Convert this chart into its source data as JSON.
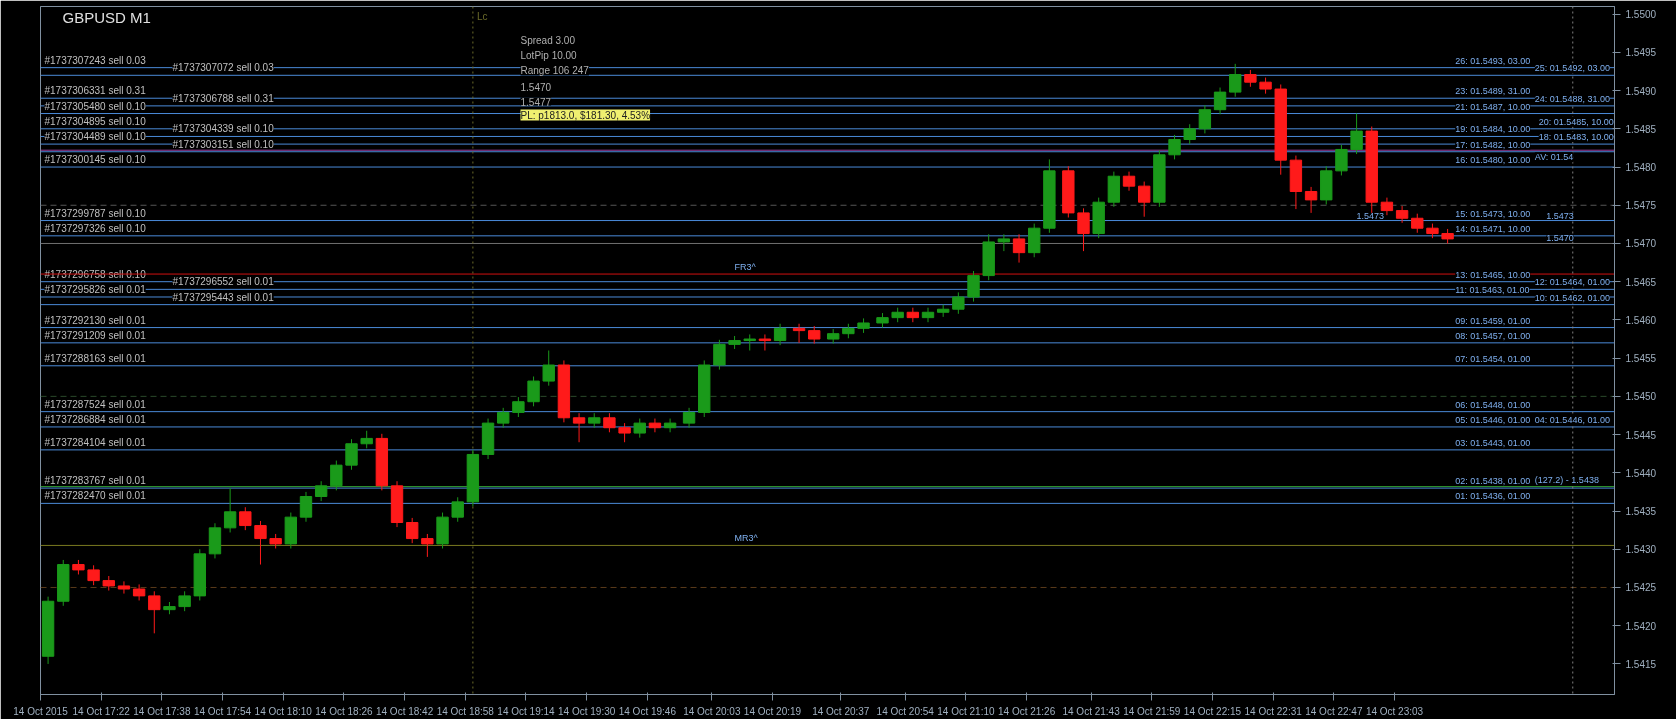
{
  "chart_data": {
    "type": "candlestick",
    "title": "GBPUSD  M1",
    "x": [
      "2015-10-14T17:08",
      "2015-10-14T17:12",
      "2015-10-14T17:16",
      "2015-10-14T17:20",
      "2015-10-14T17:24",
      "2015-10-14T17:28",
      "2015-10-14T17:32",
      "2015-10-14T17:36",
      "2015-10-14T17:40",
      "2015-10-14T17:44",
      "2015-10-14T17:48",
      "2015-10-14T17:52",
      "2015-10-14T17:56",
      "2015-10-14T18:00",
      "2015-10-14T18:04",
      "2015-10-14T18:08",
      "2015-10-14T18:12",
      "2015-10-14T18:16",
      "2015-10-14T18:20",
      "2015-10-14T18:24",
      "2015-10-14T18:28",
      "2015-10-14T18:32",
      "2015-10-14T18:36",
      "2015-10-14T18:40",
      "2015-10-14T18:44",
      "2015-10-14T18:48",
      "2015-10-14T18:52",
      "2015-10-14T18:56",
      "2015-10-14T19:00",
      "2015-10-14T19:04",
      "2015-10-14T19:08",
      "2015-10-14T19:12",
      "2015-10-14T19:16",
      "2015-10-14T19:20",
      "2015-10-14T19:24",
      "2015-10-14T19:28",
      "2015-10-14T19:32",
      "2015-10-14T19:36",
      "2015-10-14T19:40",
      "2015-10-14T19:44",
      "2015-10-14T19:48",
      "2015-10-14T19:52",
      "2015-10-14T19:57",
      "2015-10-14T20:01",
      "2015-10-14T20:05",
      "2015-10-14T20:09",
      "2015-10-14T20:13",
      "2015-10-14T20:17",
      "2015-10-14T20:21",
      "2015-10-14T20:26",
      "2015-10-14T20:30",
      "2015-10-14T20:35",
      "2015-10-14T20:39",
      "2015-10-14T20:43",
      "2015-10-14T20:48",
      "2015-10-14T20:52",
      "2015-10-14T20:56",
      "2015-10-14T21:00",
      "2015-10-14T21:04",
      "2015-10-14T21:08",
      "2015-10-14T21:12",
      "2015-10-14T21:16",
      "2015-10-14T21:20",
      "2015-10-14T21:24",
      "2015-10-14T21:28",
      "2015-10-14T21:32",
      "2015-10-14T21:37",
      "2015-10-14T21:41",
      "2015-10-14T21:45",
      "2015-10-14T21:49",
      "2015-10-14T21:53",
      "2015-10-14T21:57",
      "2015-10-14T22:01",
      "2015-10-14T22:05",
      "2015-10-14T22:09",
      "2015-10-14T22:13",
      "2015-10-14T22:17",
      "2015-10-14T22:21",
      "2015-10-14T22:25",
      "2015-10-14T22:29",
      "2015-10-14T22:33",
      "2015-10-14T22:37",
      "2015-10-14T22:41",
      "2015-10-14T22:45",
      "2015-10-14T22:49",
      "2015-10-14T22:53",
      "2015-10-14T22:57",
      "2015-10-14T23:01",
      "2015-10-14T23:05",
      "2015-10-14T23:09",
      "2015-10-14T23:13",
      "2015-10-14T23:17"
    ],
    "ohlc": [
      [
        1.5416,
        1.54238,
        1.5415,
        1.54232
      ],
      [
        1.54232,
        1.54286,
        1.54226,
        1.5428
      ],
      [
        1.5428,
        1.54286,
        1.54267,
        1.54273
      ],
      [
        1.54273,
        1.54279,
        1.54253,
        1.54259
      ],
      [
        1.54259,
        1.54265,
        1.54246,
        1.54252
      ],
      [
        1.54252,
        1.54258,
        1.54242,
        1.54248
      ],
      [
        1.54248,
        1.54254,
        1.54233,
        1.54239
      ],
      [
        1.54239,
        1.54245,
        1.5419,
        1.54221
      ],
      [
        1.54221,
        1.54231,
        1.54215,
        1.54225
      ],
      [
        1.54225,
        1.54245,
        1.54219,
        1.54239
      ],
      [
        1.54239,
        1.543,
        1.54233,
        1.54294
      ],
      [
        1.54294,
        1.54334,
        1.54288,
        1.54328
      ],
      [
        1.54328,
        1.5438,
        1.54322,
        1.54349
      ],
      [
        1.54349,
        1.54355,
        1.54325,
        1.54331
      ],
      [
        1.54331,
        1.54337,
        1.5428,
        1.54314
      ],
      [
        1.54314,
        1.5432,
        1.54301,
        1.54307
      ],
      [
        1.54307,
        1.54348,
        1.54301,
        1.54342
      ],
      [
        1.54342,
        1.54375,
        1.54336,
        1.54369
      ],
      [
        1.54369,
        1.54389,
        1.54363,
        1.54383
      ],
      [
        1.54383,
        1.54416,
        1.54377,
        1.5441
      ],
      [
        1.5441,
        1.54444,
        1.54404,
        1.54438
      ],
      [
        1.54438,
        1.54455,
        1.54432,
        1.54445
      ],
      [
        1.54445,
        1.54451,
        1.54377,
        1.54383
      ],
      [
        1.54383,
        1.54389,
        1.54329,
        1.54335
      ],
      [
        1.54335,
        1.54341,
        1.54308,
        1.54314
      ],
      [
        1.54314,
        1.5432,
        1.5429,
        1.54307
      ],
      [
        1.54307,
        1.54348,
        1.54301,
        1.54342
      ],
      [
        1.54342,
        1.54368,
        1.54336,
        1.54362
      ],
      [
        1.54362,
        1.5443,
        1.54356,
        1.54424
      ],
      [
        1.54424,
        1.54471,
        1.54418,
        1.54465
      ],
      [
        1.54465,
        1.54485,
        1.54459,
        1.54479
      ],
      [
        1.54479,
        1.54499,
        1.54473,
        1.54493
      ],
      [
        1.54493,
        1.54526,
        1.54487,
        1.5452
      ],
      [
        1.5452,
        1.5456,
        1.54514,
        1.54541
      ],
      [
        1.54541,
        1.54547,
        1.54466,
        1.54472
      ],
      [
        1.54472,
        1.54478,
        1.5444,
        1.54465
      ],
      [
        1.54465,
        1.54478,
        1.54459,
        1.54472
      ],
      [
        1.54472,
        1.54478,
        1.54453,
        1.54459
      ],
      [
        1.54459,
        1.54465,
        1.5444,
        1.54452
      ],
      [
        1.54452,
        1.54471,
        1.54446,
        1.54465
      ],
      [
        1.54465,
        1.54471,
        1.54453,
        1.54459
      ],
      [
        1.54459,
        1.54471,
        1.54453,
        1.54465
      ],
      [
        1.54465,
        1.54485,
        1.54459,
        1.54479
      ],
      [
        1.54479,
        1.54547,
        1.54473,
        1.54541
      ],
      [
        1.54541,
        1.54574,
        1.54535,
        1.54568
      ],
      [
        1.54568,
        1.54579,
        1.54562,
        1.54573
      ],
      [
        1.54573,
        1.54581,
        1.5456,
        1.54575
      ],
      [
        1.54575,
        1.54581,
        1.5456,
        1.54573
      ],
      [
        1.54573,
        1.54595,
        1.54567,
        1.54589
      ],
      [
        1.54589,
        1.54595,
        1.5457,
        1.54586
      ],
      [
        1.54586,
        1.54592,
        1.54569,
        1.54575
      ],
      [
        1.54575,
        1.54588,
        1.54569,
        1.54582
      ],
      [
        1.54582,
        1.54595,
        1.54576,
        1.54589
      ],
      [
        1.54589,
        1.54602,
        1.54583,
        1.54596
      ],
      [
        1.54596,
        1.54609,
        1.5459,
        1.54603
      ],
      [
        1.54603,
        1.54616,
        1.54597,
        1.5461
      ],
      [
        1.5461,
        1.54616,
        1.54597,
        1.54603
      ],
      [
        1.54603,
        1.54616,
        1.54597,
        1.5461
      ],
      [
        1.5461,
        1.5462,
        1.54604,
        1.54614
      ],
      [
        1.54614,
        1.54636,
        1.54608,
        1.5463
      ],
      [
        1.5463,
        1.54664,
        1.54624,
        1.54658
      ],
      [
        1.54658,
        1.54712,
        1.54652,
        1.54702
      ],
      [
        1.54702,
        1.54712,
        1.5469,
        1.54706
      ],
      [
        1.54706,
        1.54712,
        1.54675,
        1.54688
      ],
      [
        1.54688,
        1.54726,
        1.54682,
        1.5472
      ],
      [
        1.5472,
        1.5481,
        1.54714,
        1.54795
      ],
      [
        1.54795,
        1.54801,
        1.54734,
        1.5474
      ],
      [
        1.5474,
        1.54746,
        1.5469,
        1.54713
      ],
      [
        1.54713,
        1.5476,
        1.54707,
        1.54754
      ],
      [
        1.54754,
        1.54794,
        1.54748,
        1.54788
      ],
      [
        1.54788,
        1.54794,
        1.54769,
        1.54775
      ],
      [
        1.54775,
        1.54781,
        1.54735,
        1.54754
      ],
      [
        1.54754,
        1.54822,
        1.54748,
        1.54816
      ],
      [
        1.54816,
        1.54842,
        1.5481,
        1.54836
      ],
      [
        1.54836,
        1.54856,
        1.5483,
        1.5485
      ],
      [
        1.5485,
        1.54881,
        1.54844,
        1.54875
      ],
      [
        1.54875,
        1.54904,
        1.54869,
        1.54898
      ],
      [
        1.54898,
        1.54935,
        1.54892,
        1.54921
      ],
      [
        1.54921,
        1.54927,
        1.54905,
        1.54911
      ],
      [
        1.54911,
        1.54917,
        1.54896,
        1.54902
      ],
      [
        1.54902,
        1.54908,
        1.5479,
        1.54809
      ],
      [
        1.54809,
        1.54815,
        1.54745,
        1.54768
      ],
      [
        1.54768,
        1.54774,
        1.5474,
        1.54757
      ],
      [
        1.54757,
        1.54801,
        1.54751,
        1.54795
      ],
      [
        1.54795,
        1.54829,
        1.54789,
        1.54823
      ],
      [
        1.54823,
        1.5487,
        1.54817,
        1.54847
      ],
      [
        1.54847,
        1.54853,
        1.5474,
        1.54754
      ],
      [
        1.54754,
        1.5476,
        1.54737,
        1.54743
      ],
      [
        1.54743,
        1.54749,
        1.54727,
        1.54733
      ],
      [
        1.54733,
        1.54739,
        1.54714,
        1.5472
      ],
      [
        1.5472,
        1.54726,
        1.54707,
        1.54713
      ],
      [
        1.54713,
        1.54719,
        1.547,
        1.54706
      ]
    ],
    "colors": [
      "#1a9a1a",
      "#1a9a1a",
      "#ff1a1a",
      "#ff1a1a",
      "#ff1a1a",
      "#ff1a1a",
      "#ff1a1a",
      "#ff1a1a",
      "#1a9a1a",
      "#1a9a1a",
      "#1a9a1a",
      "#1a9a1a",
      "#1a9a1a",
      "#ff1a1a",
      "#ff1a1a",
      "#ff1a1a",
      "#1a9a1a",
      "#1a9a1a",
      "#1a9a1a",
      "#1a9a1a",
      "#1a9a1a",
      "#1a9a1a",
      "#ff1a1a",
      "#ff1a1a",
      "#ff1a1a",
      "#ff1a1a",
      "#1a9a1a",
      "#1a9a1a",
      "#1a9a1a",
      "#1a9a1a",
      "#1a9a1a",
      "#1a9a1a",
      "#1a9a1a",
      "#1a9a1a",
      "#ff1a1a",
      "#ff1a1a",
      "#1a9a1a",
      "#ff1a1a",
      "#ff1a1a",
      "#1a9a1a",
      "#ff1a1a",
      "#1a9a1a",
      "#1a9a1a",
      "#1a9a1a",
      "#1a9a1a",
      "#1a9a1a",
      "#1a9a1a",
      "#ff1a1a",
      "#1a9a1a",
      "#ff1a1a",
      "#ff1a1a",
      "#1a9a1a",
      "#1a9a1a",
      "#1a9a1a",
      "#1a9a1a",
      "#1a9a1a",
      "#ff1a1a",
      "#1a9a1a",
      "#1a9a1a",
      "#1a9a1a",
      "#1a9a1a",
      "#1a9a1a",
      "#1a9a1a",
      "#ff1a1a",
      "#1a9a1a",
      "#1a9a1a",
      "#ff1a1a",
      "#ff1a1a",
      "#1a9a1a",
      "#1a9a1a",
      "#ff1a1a",
      "#ff1a1a",
      "#1a9a1a",
      "#1a9a1a",
      "#1a9a1a",
      "#1a9a1a",
      "#1a9a1a",
      "#1a9a1a",
      "#ff1a1a",
      "#ff1a1a",
      "#ff1a1a",
      "#ff1a1a",
      "#ff1a1a",
      "#1a9a1a",
      "#1a9a1a",
      "#1a9a1a",
      "#ff1a1a",
      "#ff1a1a",
      "#ff1a1a",
      "#ff1a1a",
      "#ff1a1a",
      "#ff1a1a"
    ],
    "xlim": [
      "2015-10-14T17:06",
      "2015-10-15T00:01"
    ],
    "xticks": [
      {
        "value": "2015-10-14T17:06",
        "label": "14 Oct 2015"
      },
      {
        "value": "2015-10-14T17:22",
        "label": "14 Oct 17:22"
      },
      {
        "value": "2015-10-14T17:38",
        "label": "14 Oct 17:38"
      },
      {
        "value": "2015-10-14T17:54",
        "label": "14 Oct 17:54"
      },
      {
        "value": "2015-10-14T18:10",
        "label": "14 Oct 18:10"
      },
      {
        "value": "2015-10-14T18:26",
        "label": "14 Oct 18:26"
      },
      {
        "value": "2015-10-14T18:42",
        "label": "14 Oct 18:42"
      },
      {
        "value": "2015-10-14T18:58",
        "label": "14 Oct 18:58"
      },
      {
        "value": "2015-10-14T19:14",
        "label": "14 Oct 19:14"
      },
      {
        "value": "2015-10-14T19:30",
        "label": "14 Oct 19:30"
      },
      {
        "value": "2015-10-14T19:46",
        "label": "14 Oct 19:46"
      },
      {
        "value": "2015-10-14T20:03",
        "label": "14 Oct 20:03"
      },
      {
        "value": "2015-10-14T20:19",
        "label": "14 Oct 20:19"
      },
      {
        "value": "2015-10-14T20:37",
        "label": "14 Oct 20:37"
      },
      {
        "value": "2015-10-14T20:54",
        "label": "14 Oct 20:54"
      },
      {
        "value": "2015-10-14T21:10",
        "label": "14 Oct 21:10"
      },
      {
        "value": "2015-10-14T21:26",
        "label": "14 Oct 21:26"
      },
      {
        "value": "2015-10-14T21:43",
        "label": "14 Oct 21:43"
      },
      {
        "value": "2015-10-14T21:59",
        "label": "14 Oct 21:59"
      },
      {
        "value": "2015-10-14T22:15",
        "label": "14 Oct 22:15"
      },
      {
        "value": "2015-10-14T22:31",
        "label": "14 Oct 22:31"
      },
      {
        "value": "2015-10-14T22:47",
        "label": "14 Oct 22:47"
      },
      {
        "value": "2015-10-14T23:03",
        "label": "14 Oct 23:03"
      }
    ],
    "ylim": [
      1.5411,
      1.5501
    ],
    "yticks": [
      1.5415,
      {
        "value": 1.542,
        "label": "1.5420"
      },
      1.5425,
      {
        "value": 1.543,
        "label": "1.5430"
      },
      1.5435,
      {
        "value": 1.544,
        "label": "1.5440"
      },
      1.5445,
      {
        "value": 1.545,
        "label": "1.5450"
      },
      1.5455,
      {
        "value": 1.546,
        "label": "1.5460"
      },
      1.5465,
      {
        "value": 1.547,
        "label": "1.5470"
      },
      1.5475,
      {
        "value": 1.548,
        "label": "1.5480"
      },
      1.5485,
      {
        "value": 1.549,
        "label": "1.5490"
      },
      1.5495,
      {
        "value": 1.55,
        "label": "1.5500"
      }
    ],
    "ref_lines": [
      {
        "axis": "y",
        "value": 1.5493,
        "label": "#1737307243 sell 0.03",
        "color": "#4a8ad8",
        "line_style": "solid"
      },
      {
        "axis": "y",
        "value": 1.5492,
        "label": "#1737307072 sell 0.03",
        "color": "#4a8ad8",
        "line_style": "solid"
      },
      {
        "axis": "y",
        "value": 1.5489,
        "label": "#1737306331 sell 0.31",
        "color": "#4a8ad8",
        "line_style": "solid"
      },
      {
        "axis": "y",
        "value": 1.5488,
        "label": "#1737306788 sell 0.31",
        "color": "#4a8ad8",
        "line_style": "solid"
      },
      {
        "axis": "y",
        "value": 1.5487,
        "label": "#1737305480 sell 0.10",
        "color": "#4a8ad8",
        "line_style": "solid"
      },
      {
        "axis": "y",
        "value": 1.5485,
        "label": "#1737304895 sell 0.10",
        "color": "#4a8ad8",
        "line_style": "solid"
      },
      {
        "axis": "y",
        "value": 1.5484,
        "label": "#1737304339 sell 0.10",
        "color": "#4a8ad8",
        "line_style": "solid"
      },
      {
        "axis": "y",
        "value": 1.5483,
        "label": "#1737304489 sell 0.10",
        "color": "#4a8ad8",
        "line_style": "solid"
      },
      {
        "axis": "y",
        "value": 1.5482,
        "label": "#1737303151 sell 0.10",
        "color": "#4a8ad8",
        "line_style": "solid"
      },
      {
        "axis": "y",
        "value": 1.548,
        "label": "#1737300145 sell 0.10",
        "color": "#4a8ad8",
        "line_style": "solid"
      },
      {
        "axis": "y",
        "value": 1.5473,
        "label": "#1737299787 sell 0.10",
        "color": "#4a8ad8",
        "line_style": "solid"
      },
      {
        "axis": "y",
        "value": 1.5471,
        "label": "#1737297326 sell 0.10",
        "color": "#4a8ad8",
        "line_style": "solid"
      },
      {
        "axis": "y",
        "value": 1.5465,
        "label": "#1737296758 sell 0.10",
        "color": "#4a8ad8",
        "line_style": "solid"
      },
      {
        "axis": "y",
        "value": 1.5464,
        "label": "#1737296552 sell 0.01",
        "color": "#4a8ad8",
        "line_style": "solid"
      },
      {
        "axis": "y",
        "value": 1.5463,
        "label": "#1737295826 sell 0.01",
        "color": "#4a8ad8",
        "line_style": "solid"
      },
      {
        "axis": "y",
        "value": 1.5462,
        "label": "#1737295443 sell 0.01",
        "color": "#4a8ad8",
        "line_style": "solid"
      },
      {
        "axis": "y",
        "value": 1.5459,
        "label": "#1737292130 sell 0.01",
        "color": "#4a8ad8",
        "line_style": "solid"
      },
      {
        "axis": "y",
        "value": 1.5457,
        "label": "#1737291209 sell 0.01",
        "color": "#4a8ad8",
        "line_style": "solid"
      },
      {
        "axis": "y",
        "value": 1.5454,
        "label": "#1737288163 sell 0.01",
        "color": "#4a8ad8",
        "line_style": "solid"
      },
      {
        "axis": "y",
        "value": 1.5448,
        "label": "#1737287524 sell 0.01",
        "color": "#4a8ad8",
        "line_style": "solid"
      },
      {
        "axis": "y",
        "value": 1.5446,
        "label": "#1737286884 sell 0.01",
        "color": "#4a8ad8",
        "line_style": "solid"
      },
      {
        "axis": "y",
        "value": 1.5443,
        "label": "#1737284104 sell 0.01",
        "color": "#4a8ad8",
        "line_style": "solid"
      },
      {
        "axis": "y",
        "value": 1.5438,
        "label": "#1737283767 sell 0.01",
        "color": "#4a8ad8",
        "line_style": "solid"
      },
      {
        "axis": "y",
        "value": 1.5436,
        "label": "#1737282470 sell 0.01",
        "color": "#4a8ad8",
        "line_style": "solid"
      },
      {
        "axis": "y",
        "value": 1.5466,
        "color": "#d01010",
        "line_style": "solid"
      },
      {
        "axis": "y",
        "value": 1.54305,
        "color": "#7a7a20",
        "line_style": "solid"
      },
      {
        "axis": "y",
        "value": 1.54382,
        "color": "#2e9a2e",
        "line_style": "solid"
      },
      {
        "axis": "y",
        "value": 1.54822,
        "color": "#a040a0",
        "line_style": "solid"
      },
      {
        "axis": "y",
        "value": 1.547,
        "color": "#707070",
        "line_style": "solid"
      },
      {
        "axis": "y",
        "value": 1.5475,
        "color": "#555555",
        "line_style": "dashed"
      },
      {
        "axis": "y",
        "value": 1.545,
        "color": "#2a4a2a",
        "line_style": "dashed"
      },
      {
        "axis": "y",
        "value": 1.5425,
        "color": "#5a3a1a",
        "line_style": "dashed"
      },
      {
        "axis": "x",
        "value": "2015-10-14T19:00",
        "label": "Lc",
        "color": "#6b6b2a",
        "line_style": "dotted"
      },
      {
        "axis": "x",
        "value": "2015-10-14T23:50",
        "color": "#808080",
        "line_style": "dotted"
      }
    ],
    "annotations": [
      "Spread 3.00",
      "LotPip 10.00",
      "Range 106 247",
      "1.5470",
      "1.5477",
      "PL: p1813.0, $181.30, 4.53%",
      {
        "text": "26: 01.5493, 03.00",
        "x": "2015-10-14T23:19",
        "y": 1.5493
      },
      {
        "text": "25: 01.5492, 03.00",
        "x": "2015-10-14T23:40",
        "y": 1.5492
      },
      {
        "text": "23: 01.5489, 31.00",
        "x": "2015-10-14T23:19",
        "y": 1.5489
      },
      {
        "text": "24: 01.5488, 31.00",
        "x": "2015-10-14T23:40",
        "y": 1.5488
      },
      {
        "text": "21: 01.5487, 10.00",
        "x": "2015-10-14T23:19",
        "y": 1.5487
      },
      {
        "text": "20: 01.5485, 10.00",
        "x": "2015-10-14T23:41",
        "y": 1.5485
      },
      {
        "text": "19: 01.5484, 10.00",
        "x": "2015-10-14T23:19",
        "y": 1.5484
      },
      {
        "text": "18: 01.5483, 10.00",
        "x": "2015-10-14T23:41",
        "y": 1.5483
      },
      {
        "text": "17: 01.5482, 10.00",
        "x": "2015-10-14T23:19",
        "y": 1.5482
      },
      {
        "text": "16: 01.5480, 10.00",
        "x": "2015-10-14T23:19",
        "y": 1.548
      },
      {
        "text": "15: 01.5473, 10.00",
        "x": "2015-10-14T23:19",
        "y": 1.5473
      },
      {
        "text": "14: 01.5471, 10.00",
        "x": "2015-10-14T23:19",
        "y": 1.5471
      },
      {
        "text": "13: 01.5465, 10.00",
        "x": "2015-10-14T23:19",
        "y": 1.5465
      },
      {
        "text": "12: 01.5464, 01.00",
        "x": "2015-10-14T23:40",
        "y": 1.5464
      },
      {
        "text": "11: 01.5463, 01.00",
        "x": "2015-10-14T23:19",
        "y": 1.5463
      },
      {
        "text": "10: 01.5462, 01.00",
        "x": "2015-10-14T23:40",
        "y": 1.5462
      },
      {
        "text": "09: 01.5459, 01.00",
        "x": "2015-10-14T23:19",
        "y": 1.5459
      },
      {
        "text": "08: 01.5457, 01.00",
        "x": "2015-10-14T23:19",
        "y": 1.5457
      },
      {
        "text": "07: 01.5454, 01.00",
        "x": "2015-10-14T23:19",
        "y": 1.5454
      },
      {
        "text": "06: 01.5448, 01.00",
        "x": "2015-10-14T23:19",
        "y": 1.5448
      },
      {
        "text": "05: 01.5446, 01.00",
        "x": "2015-10-14T23:19",
        "y": 1.5446
      },
      {
        "text": "04: 01.5446, 01.00",
        "x": "2015-10-14T23:40",
        "y": 1.5446
      },
      {
        "text": "03: 01.5443, 01.00",
        "x": "2015-10-14T23:19",
        "y": 1.5443
      },
      {
        "text": "02: 01.5438, 01.00",
        "x": "2015-10-14T23:19",
        "y": 1.5438
      },
      {
        "text": "01: 01.5436, 01.00",
        "x": "2015-10-14T23:19",
        "y": 1.5436
      },
      {
        "text": "FR3^",
        "x": "2015-10-14T20:09",
        "y": 1.5466
      },
      {
        "text": "MR3^",
        "x": "2015-10-14T20:09",
        "y": 1.54305
      },
      {
        "text": "AV: 01.54",
        "x": "2015-10-14T23:40",
        "y": 1.54822
      },
      {
        "text": "(127.2) - 1.5438",
        "x": "2015-10-14T23:40",
        "y": 1.54382
      },
      {
        "text": "1.5473",
        "x": "2015-10-14T22:53",
        "y": 1.5473
      },
      {
        "text": "1.5473",
        "x": "2015-10-14T23:43",
        "y": 1.5473
      },
      {
        "text": "1.5470",
        "x": "2015-10-14T23:43",
        "y": 1.547
      }
    ]
  }
}
